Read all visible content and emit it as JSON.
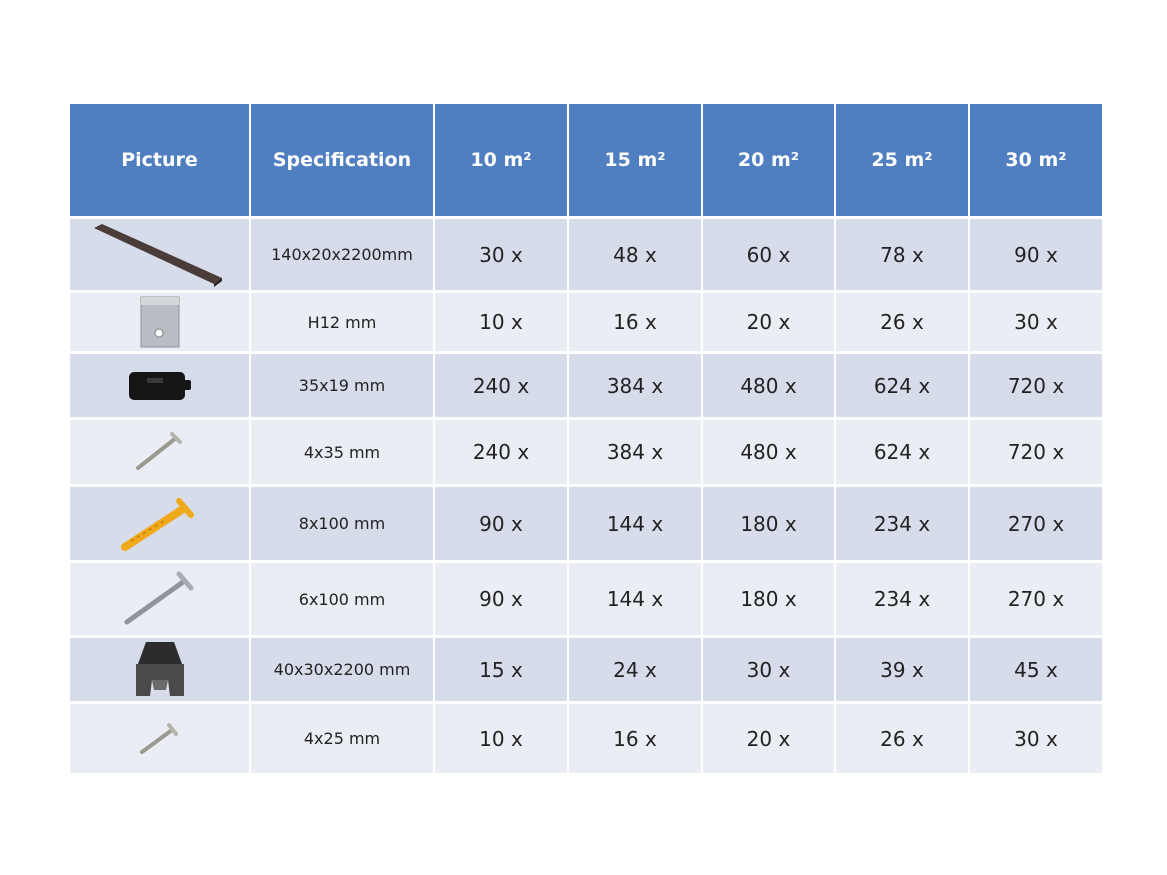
{
  "table": {
    "headers": {
      "picture": "Picture",
      "specification": "Specification",
      "area_unit": "m²",
      "areas": [
        "10 m²",
        "15 m²",
        "20 m²",
        "25 m²",
        "30 m²"
      ]
    },
    "rows": [
      {
        "icon": "decking-board-icon",
        "spec": "140x20x2200mm",
        "quantities": [
          "30 x",
          "48 x",
          "60 x",
          "78 x",
          "90 x"
        ]
      },
      {
        "icon": "metal-clip-icon",
        "spec": "H12 mm",
        "quantities": [
          "10 x",
          "16 x",
          "20 x",
          "26 x",
          "30 x"
        ]
      },
      {
        "icon": "plastic-clip-icon",
        "spec": "35x19 mm",
        "quantities": [
          "240 x",
          "384 x",
          "480 x",
          "624 x",
          "720 x"
        ]
      },
      {
        "icon": "screw-icon",
        "spec": "4x35 mm",
        "quantities": [
          "240 x",
          "384 x",
          "480 x",
          "624 x",
          "720 x"
        ]
      },
      {
        "icon": "wall-plug-icon",
        "spec": "8x100 mm",
        "quantities": [
          "90 x",
          "144 x",
          "180 x",
          "234 x",
          "270 x"
        ]
      },
      {
        "icon": "long-screw-icon",
        "spec": "6x100 mm",
        "quantities": [
          "90 x",
          "144 x",
          "180 x",
          "234 x",
          "270 x"
        ]
      },
      {
        "icon": "joist-profile-icon",
        "spec": "40x30x2200 mm",
        "quantities": [
          "15 x",
          "24 x",
          "30 x",
          "39 x",
          "45 x"
        ]
      },
      {
        "icon": "small-screw-icon",
        "spec": "4x25 mm",
        "quantities": [
          "10 x",
          "16 x",
          "20 x",
          "26 x",
          "30 x"
        ]
      }
    ]
  },
  "colors": {
    "header": "#4f7fc0",
    "row_odd": "#d7dcea",
    "row_even": "#eaedf4"
  }
}
